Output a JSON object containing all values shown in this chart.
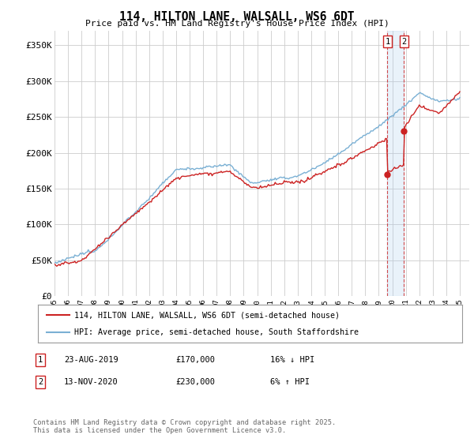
{
  "title": "114, HILTON LANE, WALSALL, WS6 6DT",
  "subtitle": "Price paid vs. HM Land Registry's House Price Index (HPI)",
  "ylabel_ticks": [
    "£0",
    "£50K",
    "£100K",
    "£150K",
    "£200K",
    "£250K",
    "£300K",
    "£350K"
  ],
  "ytick_values": [
    0,
    50000,
    100000,
    150000,
    200000,
    250000,
    300000,
    350000
  ],
  "ylim": [
    0,
    370000
  ],
  "xlim_start": 1995.3,
  "xlim_end": 2025.7,
  "hpi_color": "#7ab0d4",
  "price_color": "#cc2222",
  "vline_color": "#cc2222",
  "fill_color": "#ddeeff",
  "marker1_x": 2019.64,
  "marker2_x": 2020.87,
  "marker1_y": 170000,
  "marker2_y": 230000,
  "legend_line1": "114, HILTON LANE, WALSALL, WS6 6DT (semi-detached house)",
  "legend_line2": "HPI: Average price, semi-detached house, South Staffordshire",
  "table_entries": [
    {
      "num": "1",
      "date": "23-AUG-2019",
      "price": "£170,000",
      "change": "16% ↓ HPI"
    },
    {
      "num": "2",
      "date": "13-NOV-2020",
      "price": "£230,000",
      "change": "6% ↑ HPI"
    }
  ],
  "footnote": "Contains HM Land Registry data © Crown copyright and database right 2025.\nThis data is licensed under the Open Government Licence v3.0.",
  "background_color": "#ffffff",
  "grid_color": "#cccccc"
}
